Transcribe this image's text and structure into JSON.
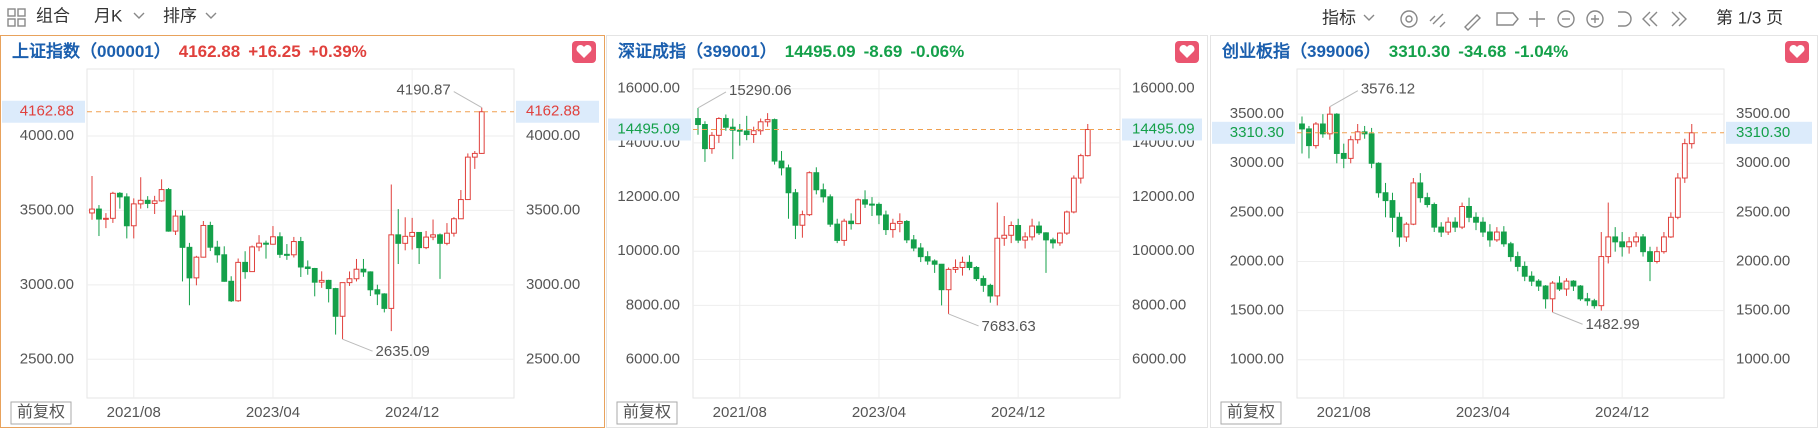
{
  "toolbar": {
    "combine": "组合",
    "period": "月K",
    "sort": "排序",
    "indicator": "指标",
    "page": "第 1/3 页"
  },
  "chart_data": [
    {
      "type": "candlestick",
      "title": "上证指数",
      "code": "（000001）",
      "price": "4162.88",
      "change": "+16.25",
      "change_pct": "+0.39%",
      "adjust": "前复权",
      "up_color": "#e0403c",
      "down_color": "#14a04a",
      "grid": true,
      "categories": [
        null,
        null,
        null,
        null,
        null,
        null,
        "2021/08",
        null,
        null,
        null,
        null,
        null,
        null,
        null,
        null,
        null,
        null,
        null,
        null,
        null,
        null,
        null,
        null,
        null,
        null,
        null,
        "2023/04",
        null,
        null,
        null,
        null,
        null,
        null,
        null,
        null,
        null,
        null,
        null,
        null,
        null,
        null,
        null,
        null,
        null,
        null,
        null,
        "2024/12",
        null,
        null,
        null,
        null,
        null,
        null,
        null,
        null,
        null,
        null
      ],
      "open": [
        3483,
        3509,
        3442,
        3447,
        3615,
        3591,
        3397,
        3544,
        3568,
        3547,
        3564,
        3640,
        3361,
        3462,
        3252,
        3047,
        3186,
        3399,
        3253,
        3202,
        3024,
        2893,
        3151,
        3089,
        3255,
        3280,
        3273,
        3323,
        3205,
        3202,
        3291,
        3120,
        3110,
        3018,
        3030,
        2975,
        2789,
        3015,
        3041,
        3105,
        3087,
        2967,
        2939,
        2842,
        3336,
        3279,
        3326,
        3352,
        3250,
        3321,
        3336,
        3279,
        3347,
        3444,
        3573,
        3858,
        3883
      ],
      "high": [
        3731,
        3536,
        3482,
        3625,
        3623,
        3615,
        3581,
        3723,
        3596,
        3598,
        3709,
        3651,
        3501,
        3500,
        3282,
        3195,
        3429,
        3424,
        3296,
        3259,
        3058,
        3177,
        3226,
        3264,
        3334,
        3297,
        3395,
        3353,
        3274,
        3322,
        3322,
        3164,
        3114,
        3091,
        3034,
        2980,
        3016,
        3090,
        3174,
        3174,
        3091,
        3001,
        2944,
        3674,
        3509,
        3454,
        3450,
        3351,
        3362,
        3439,
        3345,
        3415,
        3455,
        3637,
        3883,
        3899,
        4190.87
      ],
      "low": [
        3437,
        3328,
        3381,
        3416,
        3512,
        3312,
        3312,
        3512,
        3515,
        3476,
        3558,
        3357,
        3335,
        3023,
        2863,
        2997,
        3183,
        3227,
        3149,
        3021,
        2885,
        2886,
        3041,
        3088,
        3226,
        3176,
        3270,
        3181,
        3168,
        3184,
        3053,
        3068,
        2923,
        2980,
        2882,
        2666,
        2635.09,
        2993,
        3023,
        3054,
        2925,
        2864,
        2815,
        2689,
        3140,
        3232,
        3237,
        3140,
        3240,
        3300,
        3040,
        3266,
        3324,
        3443,
        3575,
        3779,
        3880
      ],
      "close": [
        3509,
        3442,
        3447,
        3615,
        3591,
        3397,
        3544,
        3568,
        3547,
        3564,
        3640,
        3361,
        3462,
        3252,
        3047,
        3186,
        3399,
        3253,
        3202,
        3024,
        2893,
        3151,
        3089,
        3255,
        3280,
        3273,
        3323,
        3205,
        3202,
        3291,
        3120,
        3110,
        3018,
        3030,
        2975,
        2789,
        3015,
        3041,
        3105,
        3087,
        2967,
        2939,
        2842,
        3336,
        3279,
        3326,
        3352,
        3250,
        3321,
        3336,
        3279,
        3347,
        3444,
        3573,
        3858,
        3883,
        4162.88
      ],
      "ylim": [
        2240,
        4450
      ],
      "yticks": [
        {
          "value": 2500,
          "label": "2500.00"
        },
        {
          "value": 3000,
          "label": "3000.00"
        },
        {
          "value": 3500,
          "label": "3500.00"
        },
        {
          "value": 4000,
          "label": "4000.00"
        }
      ]
    },
    {
      "type": "candlestick",
      "title": "深证成指",
      "code": "（399001）",
      "price": "14495.09",
      "change": "-8.69",
      "change_pct": "-0.06%",
      "adjust": "前复权",
      "up_color": "#e0403c",
      "down_color": "#14a04a",
      "grid": true,
      "categories": [
        null,
        null,
        null,
        null,
        null,
        null,
        "2021/08",
        null,
        null,
        null,
        null,
        null,
        null,
        null,
        null,
        null,
        null,
        null,
        null,
        null,
        null,
        null,
        null,
        null,
        null,
        null,
        "2023/04",
        null,
        null,
        null,
        null,
        null,
        null,
        null,
        null,
        null,
        null,
        null,
        null,
        null,
        null,
        null,
        null,
        null,
        null,
        null,
        "2024/12",
        null,
        null,
        null,
        null,
        null,
        null,
        null,
        null,
        null,
        null
      ],
      "open": [
        14900,
        14680,
        13790,
        14280,
        14900,
        14580,
        14470,
        14440,
        14310,
        14450,
        14780,
        14860,
        13330,
        13080,
        12160,
        10960,
        11350,
        12900,
        12270,
        12010,
        11000,
        10400,
        11110,
        11020,
        11900,
        11740,
        11730,
        11340,
        10800,
        11030,
        11100,
        10420,
        10120,
        9800,
        9640,
        9520,
        8580,
        9330,
        9400,
        9590,
        9400,
        8990,
        8740,
        8350,
        10480,
        10590,
        10950,
        10410,
        10530,
        10930,
        10680,
        10420,
        10310,
        10670,
        11450,
        12700,
        13530
      ],
      "high": [
        15290.06,
        14800,
        14400,
        14950,
        15050,
        14900,
        14700,
        15000,
        14600,
        14900,
        15100,
        14900,
        13700,
        13200,
        12300,
        11500,
        12950,
        13100,
        12500,
        12100,
        11200,
        11200,
        11400,
        11950,
        12250,
        12000,
        11800,
        11500,
        11200,
        11400,
        11150,
        10600,
        10300,
        10000,
        9700,
        9530,
        9400,
        9700,
        9800,
        9850,
        9450,
        9100,
        8800,
        11800,
        11300,
        11100,
        11200,
        10700,
        11200,
        11100,
        10700,
        10500,
        10700,
        11500,
        12800,
        13600,
        14700
      ],
      "low": [
        14300,
        13300,
        13600,
        14000,
        14450,
        13400,
        13900,
        14100,
        14000,
        14300,
        14600,
        13200,
        12800,
        11200,
        10450,
        10500,
        11300,
        12100,
        11800,
        10900,
        10300,
        10200,
        10800,
        11000,
        11600,
        11300,
        11000,
        10600,
        10500,
        10700,
        10300,
        10000,
        9600,
        9500,
        9200,
        8000,
        7683.63,
        9200,
        9100,
        9300,
        8900,
        8500,
        8100,
        8000,
        10200,
        10300,
        10300,
        10100,
        10400,
        10600,
        9200,
        10100,
        10200,
        10600,
        11400,
        12500,
        13500
      ],
      "close": [
        14680,
        13790,
        14280,
        14900,
        14580,
        14470,
        14440,
        14310,
        14450,
        14780,
        14860,
        13330,
        13080,
        12160,
        10960,
        11350,
        12900,
        12270,
        12010,
        11000,
        10400,
        11110,
        11020,
        11900,
        11740,
        11730,
        11340,
        10800,
        11030,
        11100,
        10420,
        10120,
        9800,
        9640,
        9520,
        8580,
        9330,
        9400,
        9590,
        9400,
        8990,
        8740,
        8350,
        10480,
        10590,
        10950,
        10410,
        10530,
        10930,
        10680,
        10420,
        10310,
        10670,
        11450,
        12700,
        13530,
        14495.09
      ],
      "ylim": [
        4580,
        16730
      ],
      "yticks": [
        {
          "value": 6000,
          "label": "6000.00"
        },
        {
          "value": 8000,
          "label": "8000.00"
        },
        {
          "value": 10000,
          "label": "10000.00"
        },
        {
          "value": 12000,
          "label": "12000.00"
        },
        {
          "value": 14000,
          "label": "14000.00"
        },
        {
          "value": 16000,
          "label": "16000.00"
        }
      ]
    },
    {
      "type": "candlestick",
      "title": "创业板指",
      "code": "（399006）",
      "price": "3310.30",
      "change": "-34.68",
      "change_pct": "-1.04%",
      "adjust": "前复权",
      "up_color": "#e0403c",
      "down_color": "#14a04a",
      "grid": true,
      "categories": [
        null,
        null,
        null,
        null,
        null,
        null,
        "2021/08",
        null,
        null,
        null,
        null,
        null,
        null,
        null,
        null,
        null,
        null,
        null,
        null,
        null,
        null,
        null,
        null,
        null,
        null,
        null,
        "2023/04",
        null,
        null,
        null,
        null,
        null,
        null,
        null,
        null,
        null,
        null,
        null,
        null,
        null,
        null,
        null,
        null,
        null,
        null,
        null,
        "2024/12",
        null,
        null,
        null,
        null,
        null,
        null,
        null,
        null,
        null,
        null
      ],
      "open": [
        3400,
        3350,
        3180,
        3400,
        3300,
        3500,
        3100,
        3050,
        3240,
        3320,
        3300,
        3000,
        2700,
        2620,
        2450,
        2250,
        2380,
        2800,
        2650,
        2580,
        2350,
        2300,
        2400,
        2350,
        2560,
        2450,
        2400,
        2300,
        2220,
        2300,
        2180,
        2050,
        1950,
        1850,
        1800,
        1750,
        1620,
        1780,
        1720,
        1800,
        1750,
        1620,
        1600,
        1550,
        2050,
        2250,
        2200,
        2150,
        2200,
        2250,
        2100,
        2000,
        2100,
        2250,
        2450,
        2850,
        3200
      ],
      "high": [
        3476,
        3380,
        3420,
        3500,
        3576.12,
        3510,
        3200,
        3280,
        3400,
        3380,
        3360,
        3010,
        2800,
        2700,
        2500,
        2400,
        2850,
        2900,
        2700,
        2600,
        2400,
        2450,
        2450,
        2600,
        2650,
        2500,
        2450,
        2380,
        2350,
        2360,
        2200,
        2100,
        2000,
        1900,
        1820,
        1760,
        1800,
        1850,
        1830,
        1810,
        1760,
        1680,
        1620,
        2300,
        2600,
        2350,
        2300,
        2250,
        2300,
        2280,
        2150,
        2150,
        2300,
        2500,
        2900,
        3250,
        3400
      ],
      "low": [
        3100,
        3050,
        3150,
        3260,
        3240,
        3000,
        2950,
        3000,
        3200,
        3250,
        2950,
        2650,
        2450,
        2300,
        2150,
        2200,
        2370,
        2600,
        2550,
        2300,
        2250,
        2270,
        2300,
        2330,
        2400,
        2320,
        2250,
        2150,
        2200,
        2150,
        2000,
        1900,
        1800,
        1750,
        1700,
        1520,
        1482.99,
        1700,
        1650,
        1700,
        1600,
        1550,
        1520,
        1500,
        1980,
        2100,
        2050,
        2080,
        2150,
        2050,
        1800,
        1980,
        2080,
        2240,
        2430,
        2800,
        3150
      ],
      "close": [
        3350,
        3180,
        3400,
        3300,
        3500,
        3100,
        3050,
        3240,
        3320,
        3300,
        3000,
        2700,
        2620,
        2450,
        2250,
        2380,
        2800,
        2650,
        2580,
        2350,
        2300,
        2400,
        2350,
        2560,
        2450,
        2400,
        2300,
        2220,
        2300,
        2180,
        2050,
        1950,
        1850,
        1800,
        1750,
        1620,
        1780,
        1720,
        1800,
        1750,
        1620,
        1600,
        1550,
        2050,
        2250,
        2200,
        2150,
        2200,
        2250,
        2100,
        2000,
        2100,
        2250,
        2450,
        2850,
        3200,
        3310.3
      ],
      "ylim": [
        610,
        3960
      ],
      "yticks": [
        {
          "value": 1000,
          "label": "1000.00"
        },
        {
          "value": 1500,
          "label": "1500.00"
        },
        {
          "value": 2000,
          "label": "2000.00"
        },
        {
          "value": 2500,
          "label": "2500.00"
        },
        {
          "value": 3000,
          "label": "3000.00"
        },
        {
          "value": 3500,
          "label": "3500.00"
        }
      ]
    }
  ]
}
